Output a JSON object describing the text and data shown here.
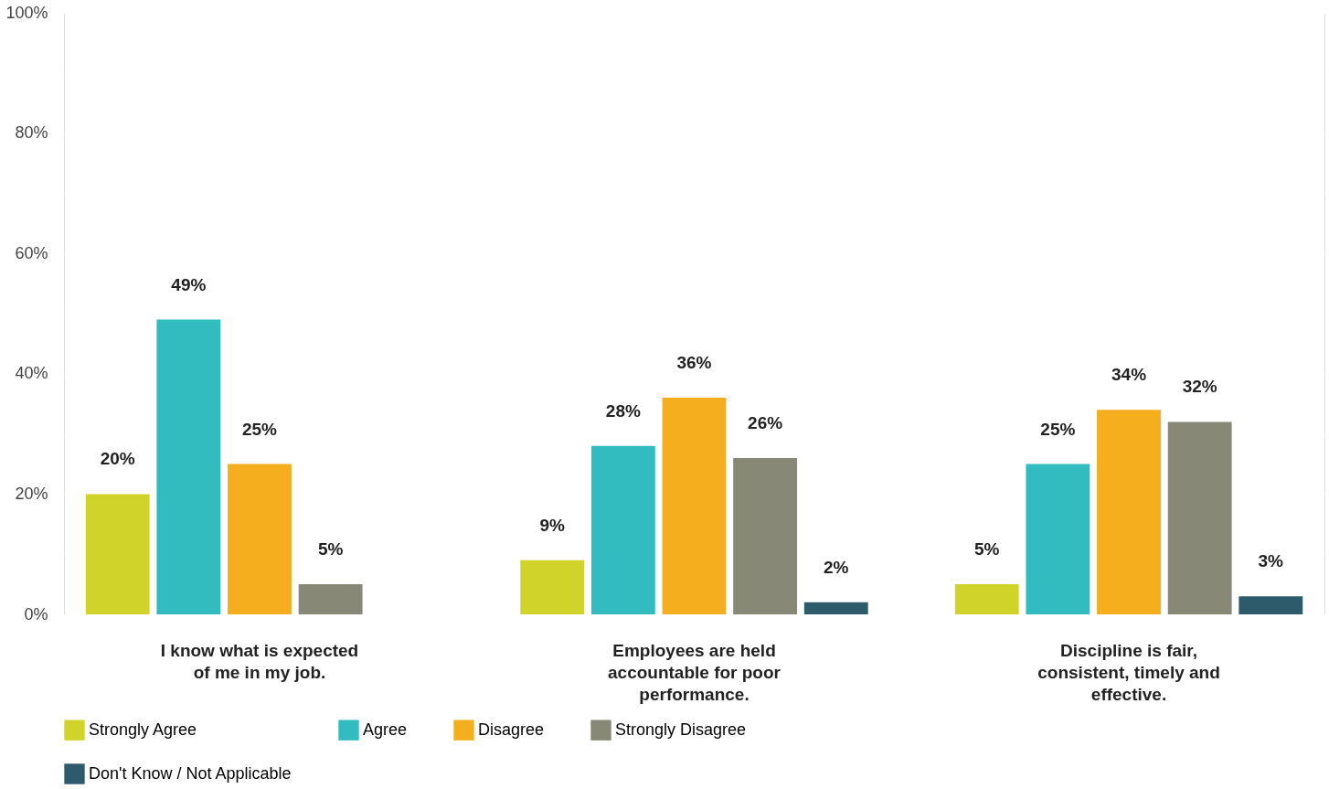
{
  "chart_data": {
    "type": "bar",
    "categories": [
      "I know what is expected of me in my job.",
      "Employees are held accountable for poor performance.",
      "Discipline is fair, consistent, timely and effective."
    ],
    "series": [
      {
        "name": "Strongly Agree",
        "color": "#d0d42a",
        "values": [
          20,
          9,
          5
        ],
        "value_labels": [
          "20%",
          "9%",
          "5%"
        ]
      },
      {
        "name": "Agree",
        "color": "#33bcbf",
        "values": [
          49,
          28,
          25
        ],
        "value_labels": [
          "49%",
          "28%",
          "25%"
        ]
      },
      {
        "name": "Disagree",
        "color": "#f4ae1e",
        "values": [
          25,
          36,
          34
        ],
        "value_labels": [
          "25%",
          "36%",
          "34%"
        ]
      },
      {
        "name": "Strongly Disagree",
        "color": "#888876",
        "values": [
          5,
          26,
          32
        ],
        "value_labels": [
          "5%",
          "26%",
          "32%"
        ]
      },
      {
        "name": "Don't Know / Not Applicable",
        "color": "#2e5b6c",
        "values": [
          null,
          2,
          3
        ],
        "value_labels": [
          null,
          "2%",
          "3%"
        ]
      }
    ],
    "ylim": [
      0,
      100
    ],
    "yticks": [
      {
        "value": 0,
        "label": "0%"
      },
      {
        "value": 10,
        "label": null
      },
      {
        "value": 20,
        "label": "20%"
      },
      {
        "value": 30,
        "label": null
      },
      {
        "value": 40,
        "label": "40%"
      },
      {
        "value": 50,
        "label": null
      },
      {
        "value": 60,
        "label": "60%"
      },
      {
        "value": 70,
        "label": null
      },
      {
        "value": 80,
        "label": "80%"
      },
      {
        "value": 90,
        "label": null
      },
      {
        "value": 100,
        "label": "100%"
      }
    ],
    "grid": "y",
    "legend": "bottom"
  }
}
